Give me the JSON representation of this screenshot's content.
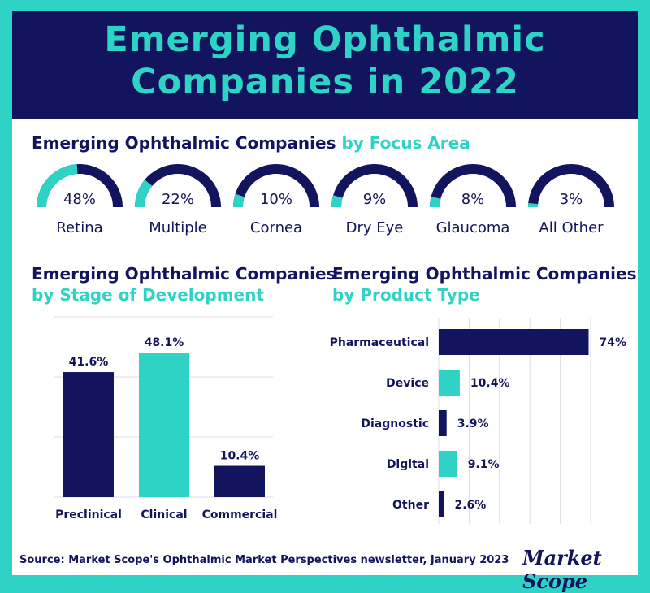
{
  "title_line1": "Emerging Ophthalmic",
  "title_line2": "Companies in 2022",
  "colors": {
    "navy": "#12155e",
    "teal": "#2fd3c6",
    "grid": "#dcdce6"
  },
  "focus": {
    "title_main": "Emerging Ophthalmic Companies ",
    "title_accent": "by Focus Area"
  },
  "stage": {
    "title_line1": "Emerging Ophthalmic Companies",
    "title_line2": "by Stage of Development"
  },
  "product": {
    "title_line1": "Emerging Ophthalmic Companies",
    "title_line2": "by Product Type"
  },
  "chart_data": [
    {
      "type": "pie",
      "title": "Emerging Ophthalmic Companies by Focus Area",
      "categories": [
        "Retina",
        "Multiple",
        "Cornea",
        "Dry Eye",
        "Glaucoma",
        "All Other"
      ],
      "values": [
        48,
        22,
        10,
        9,
        8,
        3
      ],
      "value_labels": [
        "48%",
        "22%",
        "10%",
        "9%",
        "8%",
        "3%"
      ]
    },
    {
      "type": "bar",
      "title": "Emerging Ophthalmic Companies by Stage of Development",
      "categories": [
        "Preclinical",
        "Clinical",
        "Commercial"
      ],
      "values": [
        41.6,
        48.1,
        10.4
      ],
      "value_labels": [
        "41.6%",
        "48.1%",
        "10.4%"
      ],
      "ylim": [
        0,
        60
      ]
    },
    {
      "type": "bar",
      "orientation": "horizontal",
      "title": "Emerging Ophthalmic Companies by Product Type",
      "categories": [
        "Pharmaceutical",
        "Device",
        "Diagnostic",
        "Digital",
        "Other"
      ],
      "values": [
        74,
        10.4,
        3.9,
        9.1,
        2.6
      ],
      "value_labels": [
        "74%",
        "10.4%",
        "3.9%",
        "9.1%",
        "2.6%"
      ],
      "xlim": [
        0,
        75
      ]
    }
  ],
  "source": "Source: Market Scope's Ophthalmic Market Perspectives newsletter, January 2023",
  "brand": "Market Scope"
}
